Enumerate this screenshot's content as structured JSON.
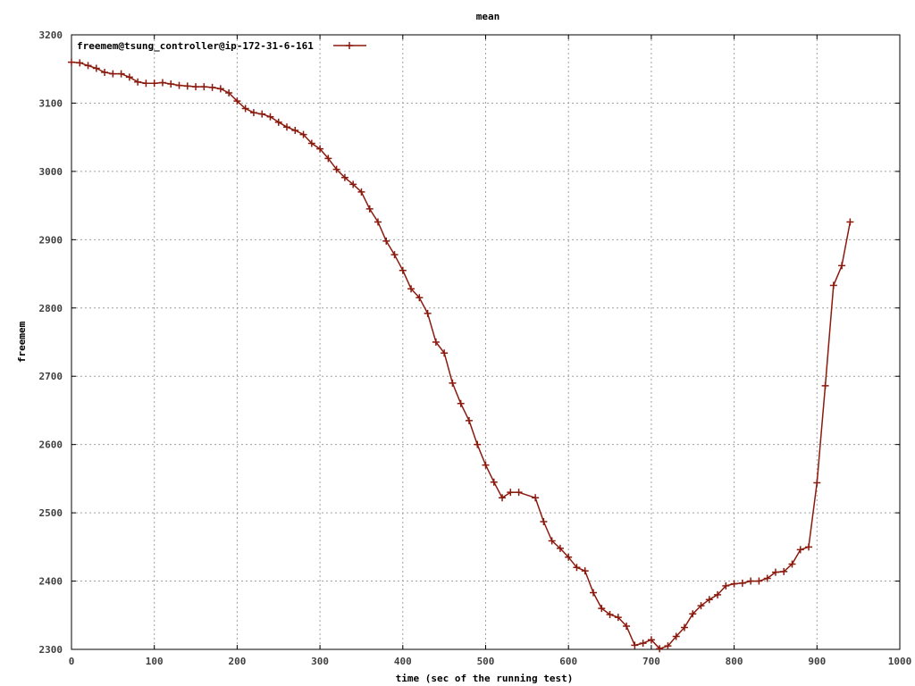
{
  "chart_data": {
    "type": "line",
    "title": "mean",
    "xlabel": "time (sec of the running test)",
    "ylabel": "freemem",
    "xlim": [
      0,
      1000
    ],
    "ylim": [
      2300,
      3200
    ],
    "xticks": [
      0,
      100,
      200,
      300,
      400,
      500,
      600,
      700,
      800,
      900,
      1000
    ],
    "yticks": [
      2300,
      2400,
      2500,
      2600,
      2700,
      2800,
      2900,
      3000,
      3100,
      3200
    ],
    "grid": true,
    "legend_position": "top-left",
    "series": [
      {
        "name": "freemem@tsung_controller@ip-172-31-6-161",
        "color": "#8b1a0e",
        "marker": "plus",
        "x": [
          0,
          10,
          20,
          30,
          40,
          50,
          60,
          70,
          80,
          90,
          100,
          110,
          120,
          130,
          140,
          150,
          160,
          170,
          180,
          190,
          200,
          210,
          220,
          230,
          240,
          250,
          260,
          270,
          280,
          290,
          300,
          310,
          320,
          330,
          340,
          350,
          360,
          370,
          380,
          390,
          400,
          410,
          420,
          430,
          440,
          450,
          460,
          470,
          480,
          490,
          500,
          510,
          520,
          530,
          540,
          560,
          570,
          580,
          590,
          600,
          610,
          620,
          630,
          640,
          650,
          660,
          670,
          680,
          690,
          700,
          710,
          720,
          730,
          740,
          750,
          760,
          770,
          780,
          790,
          800,
          810,
          820,
          830,
          840,
          850,
          860,
          870,
          880,
          890,
          900,
          910,
          920,
          930,
          940
        ],
        "y": [
          3160,
          3159,
          3155,
          3151,
          3145,
          3143,
          3143,
          3138,
          3131,
          3129,
          3129,
          3130,
          3128,
          3126,
          3125,
          3124,
          3124,
          3123,
          3121,
          3115,
          3103,
          3092,
          3086,
          3084,
          3080,
          3072,
          3065,
          3060,
          3054,
          3041,
          3033,
          3019,
          3003,
          2991,
          2981,
          2970,
          2945,
          2926,
          2898,
          2878,
          2855,
          2828,
          2815,
          2792,
          2750,
          2734,
          2690,
          2660,
          2635,
          2600,
          2570,
          2545,
          2522,
          2530,
          2530,
          2522,
          2487,
          2459,
          2448,
          2435,
          2420,
          2415,
          2383,
          2360,
          2351,
          2347,
          2334,
          2306,
          2309,
          2314,
          2301,
          2305,
          2319,
          2332,
          2352,
          2364,
          2373,
          2380,
          2393,
          2396,
          2397,
          2400,
          2400,
          2404,
          2413,
          2414,
          2425,
          2446,
          2450,
          2544,
          2686,
          2833,
          2862,
          2926
        ]
      }
    ]
  }
}
